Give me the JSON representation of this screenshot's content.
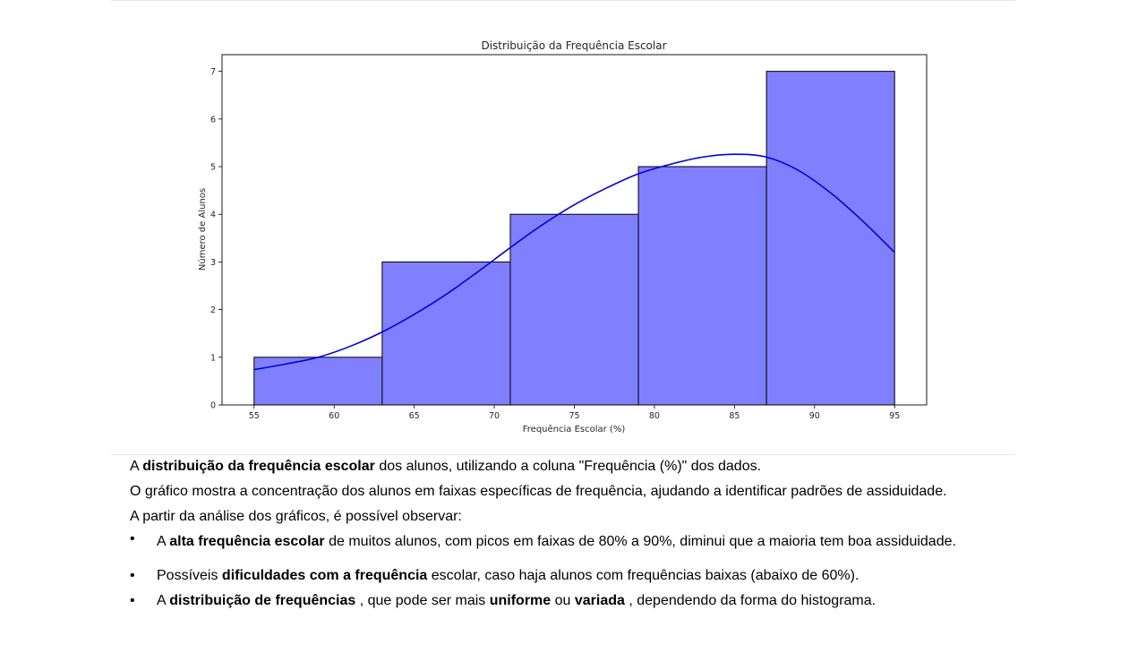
{
  "chart_data": {
    "type": "bar",
    "title": "Distribuição da Frequência Escolar",
    "xlabel": "Frequência Escolar (%)",
    "ylabel": "Número de Alunos",
    "bins": [
      [
        55,
        63
      ],
      [
        63,
        71
      ],
      [
        71,
        79
      ],
      [
        79,
        87
      ],
      [
        87,
        95
      ]
    ],
    "values": [
      1,
      3,
      4,
      5,
      7
    ],
    "xlim": [
      53,
      97
    ],
    "ylim": [
      0,
      7.35
    ],
    "xticks": [
      55,
      60,
      65,
      70,
      75,
      80,
      85,
      90,
      95
    ],
    "yticks": [
      0,
      1,
      2,
      3,
      4,
      5,
      6,
      7
    ],
    "kde": {
      "x": [
        55,
        57,
        59,
        61,
        63,
        65,
        67,
        69,
        71,
        73,
        75,
        77,
        79,
        81,
        83,
        85,
        87,
        89,
        91,
        93,
        95
      ],
      "y": [
        0.74,
        0.86,
        1.0,
        1.23,
        1.53,
        1.9,
        2.32,
        2.8,
        3.3,
        3.78,
        4.2,
        4.55,
        4.85,
        5.05,
        5.2,
        5.26,
        5.2,
        4.92,
        4.45,
        3.86,
        3.2
      ]
    },
    "colors": {
      "bar_fill": "#8080ff",
      "bar_edge": "#000000",
      "kde_line": "#0000dd"
    },
    "grid": false
  },
  "text": {
    "p1": {
      "pre": "A ",
      "bold": "distribuição da frequência escolar",
      "post": " dos alunos, utilizando a coluna \"Frequência (%)\" dos dados."
    },
    "p2": "O gráfico mostra a concentração dos alunos em faixas específicas de frequência, ajudando a identificar padrões de assiduidade.",
    "p3": "A partir da análise dos gráficos, é possível observar:",
    "bullet_char": "•",
    "b1": {
      "pre": "A ",
      "bold": "alta frequência escolar",
      "post": " de muitos alunos, com picos em faixas de 80% a 90%, diminui que a maioria tem boa assiduidade."
    },
    "b2": {
      "pre": "Possíveis ",
      "bold": "dificuldades com a frequência",
      "post": " escolar, caso haja alunos com frequências baixas (abaixo de 60%)."
    },
    "b3": {
      "pre": "A ",
      "bold1": "distribuição de frequências",
      "mid1": " , que pode ser mais ",
      "bold2": "uniforme",
      "mid2": " ou ",
      "bold3": "variada",
      "post": " , dependendo da forma do histograma."
    }
  }
}
